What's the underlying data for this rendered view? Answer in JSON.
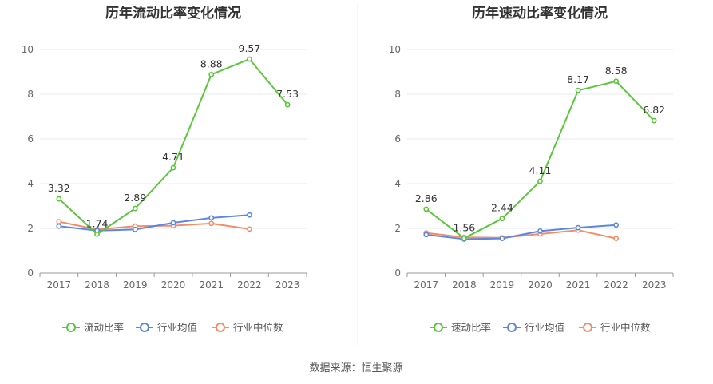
{
  "source": "数据来源：恒生聚源",
  "colors": {
    "primary": "#5cc63c",
    "average": "#5b87e2",
    "median": "#f58c68"
  },
  "chart_data": [
    {
      "type": "line",
      "title": "历年流动比率变化情况",
      "categories": [
        "2017",
        "2018",
        "2019",
        "2020",
        "2021",
        "2022",
        "2023"
      ],
      "ylim": [
        0,
        10
      ],
      "yticks": [
        0,
        2,
        4,
        6,
        8,
        10
      ],
      "grid": true,
      "legend": "bottom",
      "series": [
        {
          "name": "流动比率",
          "values": [
            3.32,
            1.74,
            2.89,
            4.71,
            8.88,
            9.57,
            7.53
          ],
          "labels": [
            "3.32",
            "1.74",
            "2.89",
            "4.71",
            "8.88",
            "9.57",
            "7.53"
          ]
        },
        {
          "name": "行业均值",
          "values": [
            2.1,
            1.9,
            1.95,
            2.25,
            2.47,
            2.6,
            null
          ]
        },
        {
          "name": "行业中位数",
          "values": [
            2.3,
            1.95,
            2.1,
            2.12,
            2.22,
            1.97,
            null
          ]
        }
      ]
    },
    {
      "type": "line",
      "title": "历年速动比率变化情况",
      "categories": [
        "2017",
        "2018",
        "2019",
        "2020",
        "2021",
        "2022",
        "2023"
      ],
      "ylim": [
        0,
        10
      ],
      "yticks": [
        0,
        2,
        4,
        6,
        8,
        10
      ],
      "grid": true,
      "legend": "bottom",
      "series": [
        {
          "name": "速动比率",
          "values": [
            2.86,
            1.56,
            2.44,
            4.11,
            8.17,
            8.58,
            6.82
          ],
          "labels": [
            "2.86",
            "1.56",
            "2.44",
            "4.11",
            "8.17",
            "8.58",
            "6.82"
          ]
        },
        {
          "name": "行业均值",
          "values": [
            1.72,
            1.52,
            1.55,
            1.88,
            2.03,
            2.15,
            null
          ]
        },
        {
          "name": "行业中位数",
          "values": [
            1.8,
            1.6,
            1.58,
            1.75,
            1.92,
            1.55,
            null
          ]
        }
      ]
    }
  ]
}
